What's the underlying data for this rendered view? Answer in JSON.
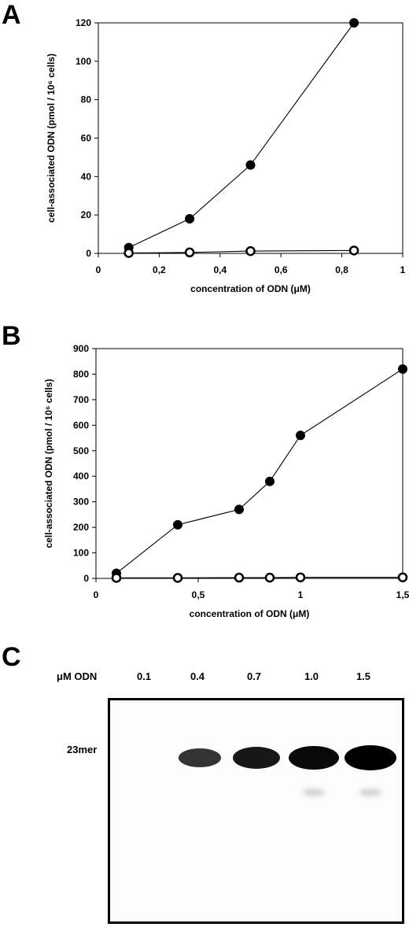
{
  "panels": [
    {
      "id": "A",
      "letter": "A"
    },
    {
      "id": "B",
      "letter": "B"
    },
    {
      "id": "C",
      "letter": "C"
    }
  ],
  "chart_data": [
    {
      "panel": "A",
      "type": "scatter",
      "xlabel": "concentration of ODN (μM)",
      "ylabel": "cell-associated ODN (pmol / 10⁶ cells)",
      "xlim": [
        0,
        1
      ],
      "ylim": [
        0,
        120
      ],
      "x_ticks": [
        0,
        0.2,
        0.4,
        0.6,
        0.8,
        1
      ],
      "x_tick_labels": [
        "0",
        "0,2",
        "0,4",
        "0,6",
        "0,8",
        "1"
      ],
      "y_ticks": [
        0,
        20,
        40,
        60,
        80,
        100,
        120
      ],
      "y_tick_labels": [
        "0",
        "20",
        "40",
        "60",
        "80",
        "100",
        "120"
      ],
      "grid": false,
      "series": [
        {
          "marker": "filled-circle",
          "color": "#000000",
          "x": [
            0.1,
            0.3,
            0.5,
            0.84
          ],
          "y": [
            3,
            18,
            46,
            120
          ]
        },
        {
          "marker": "open-circle",
          "color": "#000000",
          "x": [
            0.1,
            0.3,
            0.5,
            0.84
          ],
          "y": [
            0.2,
            0.5,
            1.2,
            1.5
          ]
        }
      ]
    },
    {
      "panel": "B",
      "type": "scatter",
      "xlabel": "concentration of ODN (μM)",
      "ylabel": "cell-associated ODN (pmol / 10⁶ cells)",
      "xlim": [
        0,
        1.5
      ],
      "ylim": [
        0,
        900
      ],
      "x_ticks": [
        0,
        0.5,
        1,
        1.5
      ],
      "x_tick_labels": [
        "0",
        "0,5",
        "1",
        "1,5"
      ],
      "y_ticks": [
        0,
        100,
        200,
        300,
        400,
        500,
        600,
        700,
        800,
        900
      ],
      "y_tick_labels": [
        "0",
        "100",
        "200",
        "300",
        "400",
        "500",
        "600",
        "700",
        "800",
        "900"
      ],
      "grid": false,
      "series": [
        {
          "marker": "filled-circle",
          "color": "#000000",
          "x": [
            0.1,
            0.4,
            0.7,
            0.85,
            1.0,
            1.5
          ],
          "y": [
            20,
            210,
            270,
            380,
            560,
            820
          ]
        },
        {
          "marker": "open-circle",
          "color": "#000000",
          "x": [
            0.1,
            0.4,
            0.7,
            0.85,
            1.0,
            1.5
          ],
          "y": [
            2,
            2,
            3,
            3,
            4,
            4
          ]
        }
      ]
    }
  ],
  "gel": {
    "header": "μM ODN",
    "band_label": "23mer",
    "lanes": [
      {
        "label": "0.1",
        "intensity": 0.0
      },
      {
        "label": "0.4",
        "intensity": 0.55
      },
      {
        "label": "0.7",
        "intensity": 0.8
      },
      {
        "label": "1.0",
        "intensity": 0.9
      },
      {
        "label": "1.5",
        "intensity": 1.0
      }
    ]
  }
}
